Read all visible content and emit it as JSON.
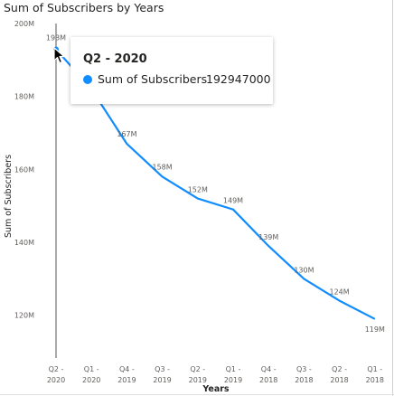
{
  "chart_data": {
    "type": "line",
    "title": "Sum of Subscribers by Years",
    "xlabel": "Years",
    "ylabel": "Sum of Subscribers",
    "ylim": [
      112000000,
      200000000
    ],
    "y_ticks": [
      120000000,
      140000000,
      160000000,
      180000000,
      200000000
    ],
    "y_tick_labels": [
      "120M",
      "140M",
      "160M",
      "180M",
      "200M"
    ],
    "categories": [
      [
        "Q2 -",
        "2020"
      ],
      [
        "Q1 -",
        "2020"
      ],
      [
        "Q4 -",
        "2019"
      ],
      [
        "Q3 -",
        "2019"
      ],
      [
        "Q2 -",
        "2019"
      ],
      [
        "Q1 -",
        "2019"
      ],
      [
        "Q4 -",
        "2018"
      ],
      [
        "Q3 -",
        "2018"
      ],
      [
        "Q2 -",
        "2018"
      ],
      [
        "Q1 -",
        "2018"
      ]
    ],
    "series": [
      {
        "name": "Sum of Subscribers",
        "color": "#118DFF",
        "values": [
          192947000,
          182000000,
          167000000,
          158000000,
          152000000,
          149000000,
          139000000,
          130000000,
          124000000,
          119000000
        ],
        "data_labels": [
          "193M",
          "",
          "167M",
          "158M",
          "152M",
          "149M",
          "139M",
          "130M",
          "124M",
          "119M"
        ]
      }
    ],
    "grid": false,
    "tooltip": {
      "title": "Q2 - 2020",
      "series": "Sum of Subscribers",
      "value": "192947000"
    }
  }
}
